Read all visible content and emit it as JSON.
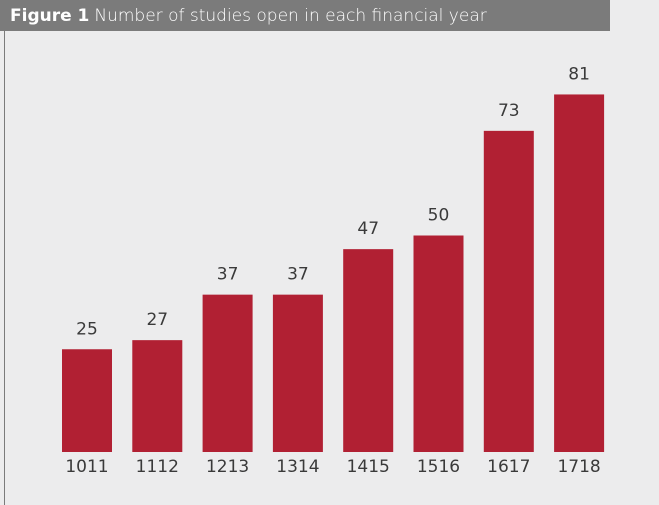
{
  "chart_data": {
    "type": "bar",
    "figure_label": "Figure 1",
    "title": "Number of studies open in each financial year",
    "categories": [
      "1011",
      "1112",
      "1213",
      "1314",
      "1415",
      "1516",
      "1617",
      "1718"
    ],
    "values": [
      25,
      27,
      37,
      37,
      47,
      50,
      73,
      81
    ],
    "color": "#b12033",
    "grid": false
  }
}
